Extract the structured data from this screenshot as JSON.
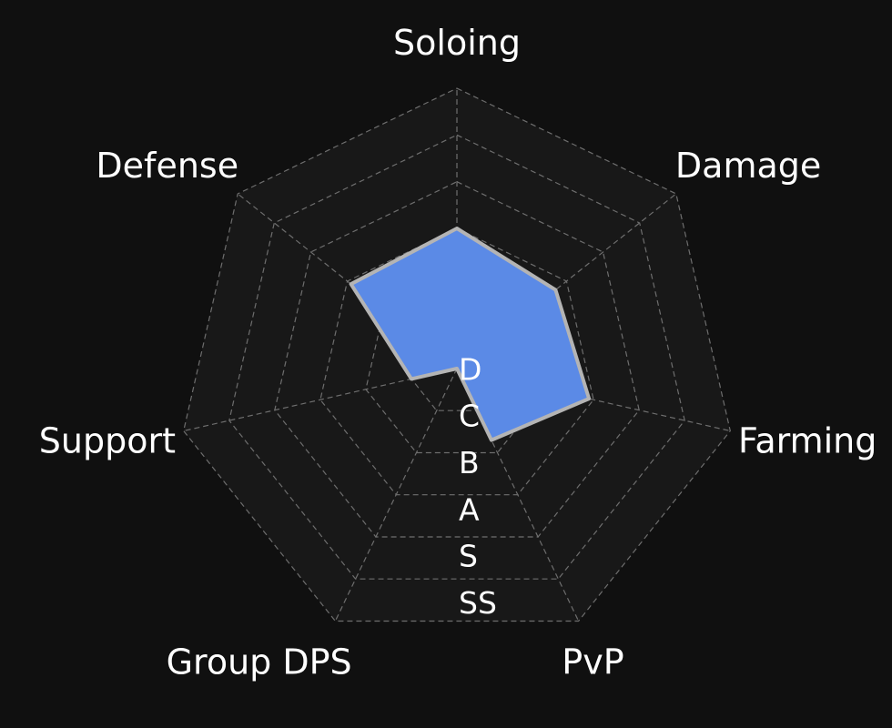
{
  "chart_data": {
    "type": "radar",
    "axes": [
      "Soloing",
      "Damage",
      "Farming",
      "PvP",
      "Group DPS",
      "Support",
      "Defense"
    ],
    "scale": [
      "D",
      "C",
      "B",
      "A",
      "S",
      "SS"
    ],
    "rmax": 6,
    "values": [
      3.0,
      2.7,
      2.9,
      1.7,
      0.0,
      1.0,
      2.9
    ],
    "grid": true,
    "colors": {
      "background": "#101010",
      "plot_background": "#181818",
      "fill": "#5b8ae6",
      "outline": "#b4b4b4",
      "grid": "#6e6e6e",
      "text": "#ffffff"
    }
  }
}
